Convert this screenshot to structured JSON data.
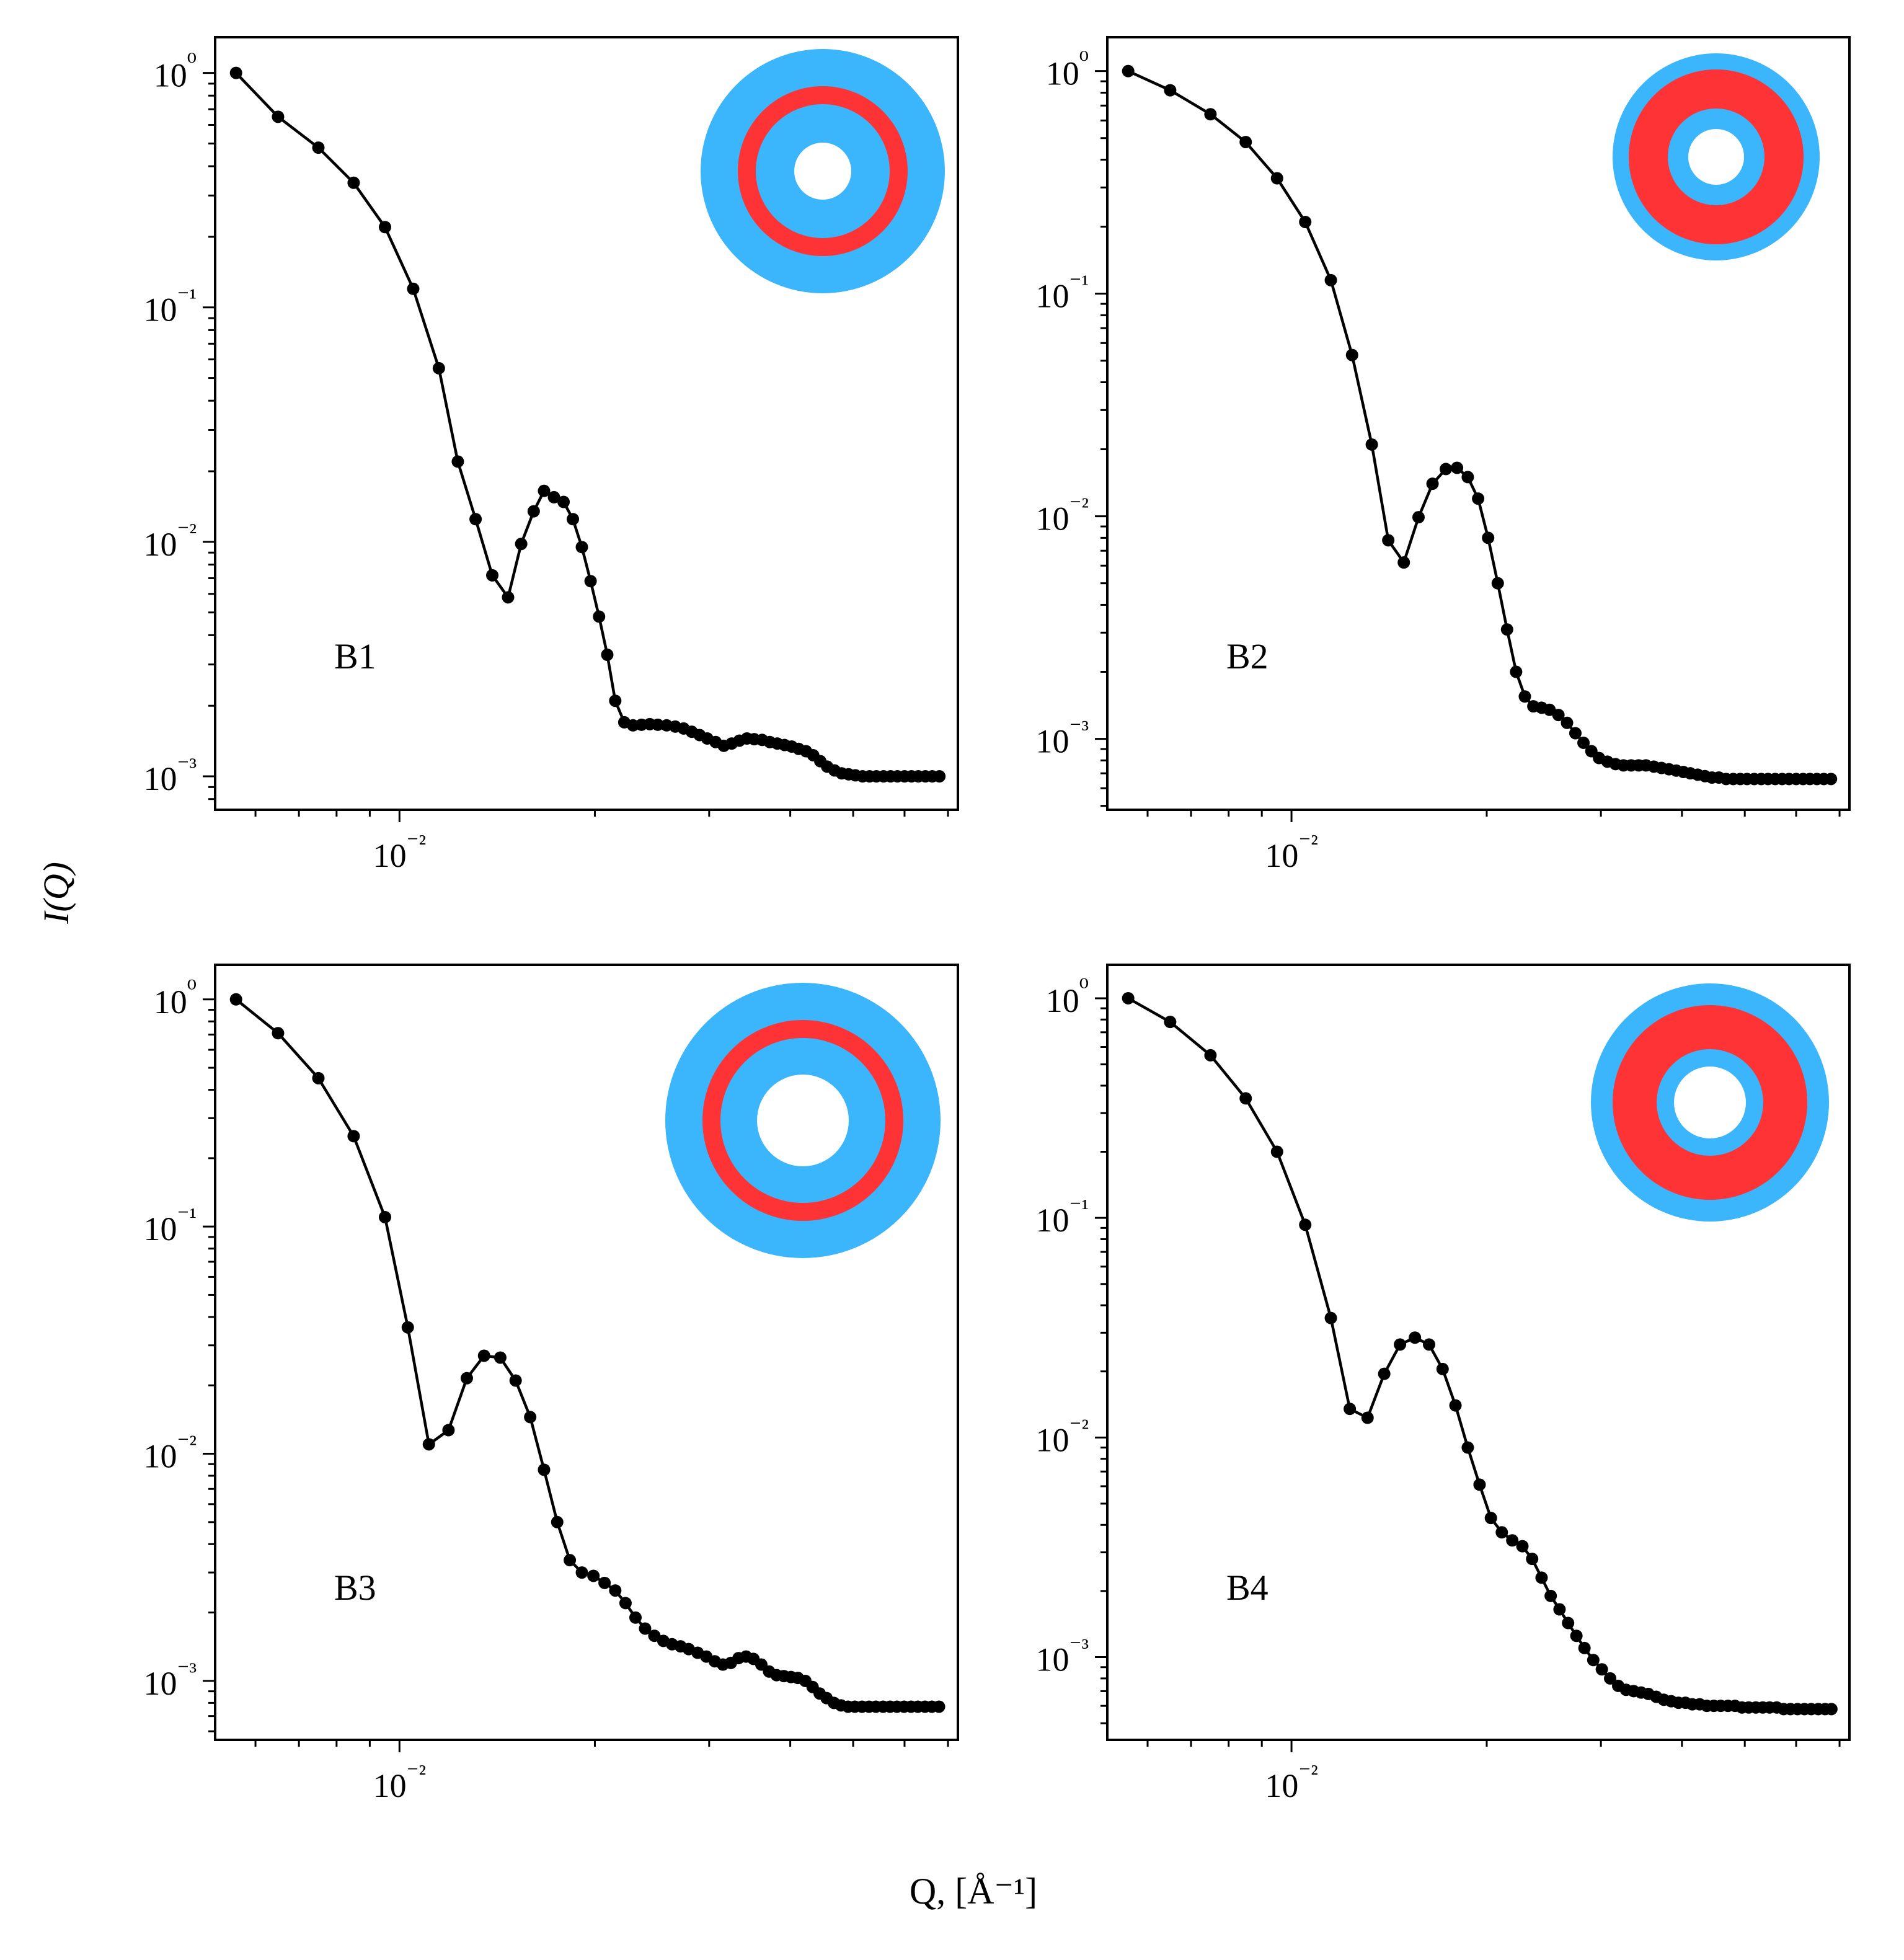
{
  "figure": {
    "xlabel": "Q, [Å⁻¹]",
    "ylabel": "I(Q)"
  },
  "colors": {
    "shell_blue": "#3bb5fc",
    "shell_red": "#fe3336",
    "line": "#000000"
  },
  "chart_data": [
    {
      "type": "line",
      "panel_label": "B1",
      "xscale": "log",
      "yscale": "log",
      "xlim": [
        0.0052,
        0.0725
      ],
      "ylim": [
        0.00072,
        1.42
      ],
      "grid": false,
      "inset": "core-shell particle icon: blue outer shell, thin red ring, blue layer, white core",
      "x": [
        0.0056,
        0.0065,
        0.0075,
        0.0085,
        0.0095,
        0.0105,
        0.0115,
        0.0123,
        0.0131,
        0.0139,
        0.0147,
        0.0154,
        0.0161,
        0.0167,
        0.0173,
        0.0179,
        0.0185,
        0.0191,
        0.0197,
        0.0203,
        0.0209,
        0.0215,
        0.0222,
        0.0229,
        0.0236,
        0.0243,
        0.025,
        0.0258,
        0.0266,
        0.0274,
        0.0282,
        0.029,
        0.0298,
        0.0307,
        0.0316,
        0.0325,
        0.0334,
        0.0343,
        0.0352,
        0.0362,
        0.0372,
        0.0382,
        0.0392,
        0.0402,
        0.0412,
        0.0423,
        0.0434,
        0.0445,
        0.0456,
        0.0468,
        0.048,
        0.0492,
        0.0504,
        0.0517,
        0.053,
        0.0543,
        0.0557,
        0.0571,
        0.0585,
        0.06,
        0.0615,
        0.063,
        0.0646,
        0.0662,
        0.0679
      ],
      "y": [
        1.0,
        0.65,
        0.48,
        0.34,
        0.22,
        0.12,
        0.055,
        0.022,
        0.0125,
        0.0072,
        0.0058,
        0.0098,
        0.0135,
        0.0165,
        0.0155,
        0.0148,
        0.0125,
        0.0095,
        0.0068,
        0.0048,
        0.0033,
        0.0021,
        0.0017,
        0.00165,
        0.00166,
        0.00167,
        0.00166,
        0.00165,
        0.00163,
        0.0016,
        0.00155,
        0.0015,
        0.00145,
        0.0014,
        0.00135,
        0.00138,
        0.00142,
        0.00145,
        0.00144,
        0.00143,
        0.0014,
        0.00138,
        0.00136,
        0.00134,
        0.00131,
        0.00128,
        0.00123,
        0.00116,
        0.0011,
        0.00106,
        0.00103,
        0.00102,
        0.00101,
        0.001,
        0.001,
        0.001,
        0.001,
        0.001,
        0.001,
        0.001,
        0.001,
        0.001,
        0.001,
        0.001,
        0.001
      ],
      "x_ticks": [
        "10⁻²"
      ],
      "y_ticks": [
        "10⁰",
        "10⁻¹",
        "10⁻²",
        "10⁻³"
      ]
    },
    {
      "type": "line",
      "panel_label": "B2",
      "xscale": "log",
      "yscale": "log",
      "xlim": [
        0.0052,
        0.0725
      ],
      "ylim": [
        0.00048,
        1.42
      ],
      "grid": false,
      "inset": "core-shell particle icon: blue outer shell, thick red layer, blue layer, white core",
      "x": [
        0.0056,
        0.0065,
        0.0075,
        0.0085,
        0.0095,
        0.0105,
        0.0115,
        0.0124,
        0.0133,
        0.0141,
        0.0149,
        0.0157,
        0.0165,
        0.0173,
        0.018,
        0.0187,
        0.0194,
        0.0201,
        0.0208,
        0.0215,
        0.0222,
        0.0229,
        0.0236,
        0.0243,
        0.025,
        0.0258,
        0.0266,
        0.0274,
        0.0282,
        0.029,
        0.0298,
        0.0307,
        0.0316,
        0.0325,
        0.0334,
        0.0343,
        0.0352,
        0.0362,
        0.0372,
        0.0382,
        0.0392,
        0.0402,
        0.0412,
        0.0423,
        0.0434,
        0.0445,
        0.0456,
        0.0468,
        0.048,
        0.0492,
        0.0504,
        0.0517,
        0.053,
        0.0543,
        0.0557,
        0.0571,
        0.0585,
        0.06,
        0.0615,
        0.063,
        0.0646,
        0.0662,
        0.0679
      ],
      "y": [
        1.0,
        0.82,
        0.64,
        0.48,
        0.33,
        0.21,
        0.115,
        0.053,
        0.021,
        0.0078,
        0.0062,
        0.0099,
        0.014,
        0.0163,
        0.0165,
        0.015,
        0.012,
        0.008,
        0.005,
        0.0031,
        0.002,
        0.00155,
        0.0014,
        0.00138,
        0.00135,
        0.00128,
        0.00118,
        0.00106,
        0.00096,
        0.00088,
        0.00082,
        0.00079,
        0.00077,
        0.00076,
        0.00076,
        0.00076,
        0.00076,
        0.00075,
        0.00074,
        0.00073,
        0.00072,
        0.00071,
        0.0007,
        0.00069,
        0.00068,
        0.00067,
        0.00067,
        0.00066,
        0.00066,
        0.00066,
        0.00066,
        0.00066,
        0.00066,
        0.00066,
        0.00066,
        0.00066,
        0.00066,
        0.00066,
        0.00066,
        0.00066,
        0.00066,
        0.00066,
        0.00066
      ],
      "x_ticks": [
        "10⁻²"
      ],
      "y_ticks": [
        "10⁰",
        "10⁻¹",
        "10⁻²",
        "10⁻³"
      ]
    },
    {
      "type": "line",
      "panel_label": "B3",
      "xscale": "log",
      "yscale": "log",
      "xlim": [
        0.0052,
        0.0725
      ],
      "ylim": [
        0.00055,
        1.42
      ],
      "grid": false,
      "inset": "core-shell particle icon: blue outer shell, thin red ring, blue layer, white core",
      "x": [
        0.0056,
        0.0065,
        0.0075,
        0.0085,
        0.0095,
        0.0103,
        0.0111,
        0.0119,
        0.0127,
        0.0135,
        0.0143,
        0.0151,
        0.0159,
        0.0167,
        0.0175,
        0.0183,
        0.0191,
        0.0199,
        0.0207,
        0.0215,
        0.0223,
        0.0231,
        0.0239,
        0.0247,
        0.0255,
        0.0263,
        0.0271,
        0.0279,
        0.0288,
        0.0297,
        0.0306,
        0.0315,
        0.0324,
        0.0333,
        0.0342,
        0.0351,
        0.0361,
        0.0371,
        0.0381,
        0.0391,
        0.0401,
        0.0411,
        0.0422,
        0.0433,
        0.0444,
        0.0455,
        0.0467,
        0.0479,
        0.0491,
        0.0503,
        0.0516,
        0.0529,
        0.0542,
        0.0556,
        0.057,
        0.0584,
        0.0599,
        0.0614,
        0.0629,
        0.0645,
        0.0661,
        0.0678
      ],
      "y": [
        1.0,
        0.71,
        0.45,
        0.25,
        0.11,
        0.036,
        0.011,
        0.0127,
        0.0215,
        0.027,
        0.0265,
        0.021,
        0.0145,
        0.0085,
        0.005,
        0.0034,
        0.003,
        0.0029,
        0.0027,
        0.0025,
        0.0022,
        0.0019,
        0.0017,
        0.00158,
        0.0015,
        0.00145,
        0.00142,
        0.00138,
        0.00133,
        0.00128,
        0.00122,
        0.00118,
        0.0012,
        0.00126,
        0.00128,
        0.00125,
        0.00118,
        0.0011,
        0.00106,
        0.00105,
        0.00104,
        0.00103,
        0.001,
        0.00094,
        0.00088,
        0.00084,
        0.0008,
        0.00078,
        0.00077,
        0.00077,
        0.00077,
        0.00077,
        0.00077,
        0.00077,
        0.00077,
        0.00077,
        0.00077,
        0.00077,
        0.00077,
        0.00077,
        0.00077,
        0.00077
      ],
      "x_ticks": [
        "10⁻²"
      ],
      "y_ticks": [
        "10⁰",
        "10⁻¹",
        "10⁻²",
        "10⁻³"
      ]
    },
    {
      "type": "line",
      "panel_label": "B4",
      "xscale": "log",
      "yscale": "log",
      "xlim": [
        0.0052,
        0.0725
      ],
      "ylim": [
        0.00042,
        1.42
      ],
      "grid": false,
      "inset": "core-shell particle icon: blue outer shell, thick red layer, blue layer, white core",
      "x": [
        0.0056,
        0.0065,
        0.0075,
        0.0085,
        0.0095,
        0.0105,
        0.0115,
        0.0123,
        0.0131,
        0.0139,
        0.0147,
        0.0155,
        0.0163,
        0.0171,
        0.0179,
        0.0187,
        0.0195,
        0.0203,
        0.0211,
        0.0219,
        0.0227,
        0.0235,
        0.0243,
        0.0251,
        0.0259,
        0.0267,
        0.0275,
        0.0283,
        0.0292,
        0.0301,
        0.031,
        0.0319,
        0.0328,
        0.0337,
        0.0346,
        0.0355,
        0.0365,
        0.0375,
        0.0385,
        0.0395,
        0.0405,
        0.0415,
        0.0426,
        0.0437,
        0.0448,
        0.0459,
        0.0471,
        0.0483,
        0.0495,
        0.0507,
        0.052,
        0.0533,
        0.0546,
        0.056,
        0.0574,
        0.0588,
        0.0603,
        0.0618,
        0.0633,
        0.0649,
        0.0665,
        0.068
      ],
      "y": [
        1.0,
        0.78,
        0.55,
        0.35,
        0.2,
        0.093,
        0.035,
        0.0135,
        0.0123,
        0.0195,
        0.0265,
        0.0285,
        0.0265,
        0.0205,
        0.014,
        0.009,
        0.0061,
        0.0043,
        0.0037,
        0.0034,
        0.0032,
        0.0028,
        0.0023,
        0.0019,
        0.00165,
        0.00143,
        0.00125,
        0.0011,
        0.00097,
        0.00088,
        0.0008,
        0.00074,
        0.00071,
        0.0007,
        0.00069,
        0.00068,
        0.00066,
        0.00064,
        0.00063,
        0.00062,
        0.00062,
        0.00061,
        0.00061,
        0.0006,
        0.0006,
        0.0006,
        0.0006,
        0.0006,
        0.00059,
        0.00059,
        0.00059,
        0.00059,
        0.00059,
        0.00059,
        0.00058,
        0.00058,
        0.00058,
        0.00058,
        0.00058,
        0.00058,
        0.00058,
        0.00058
      ],
      "x_ticks": [
        "10⁻²"
      ],
      "y_ticks": [
        "10⁰",
        "10⁻¹",
        "10⁻²",
        "10⁻³"
      ]
    }
  ]
}
